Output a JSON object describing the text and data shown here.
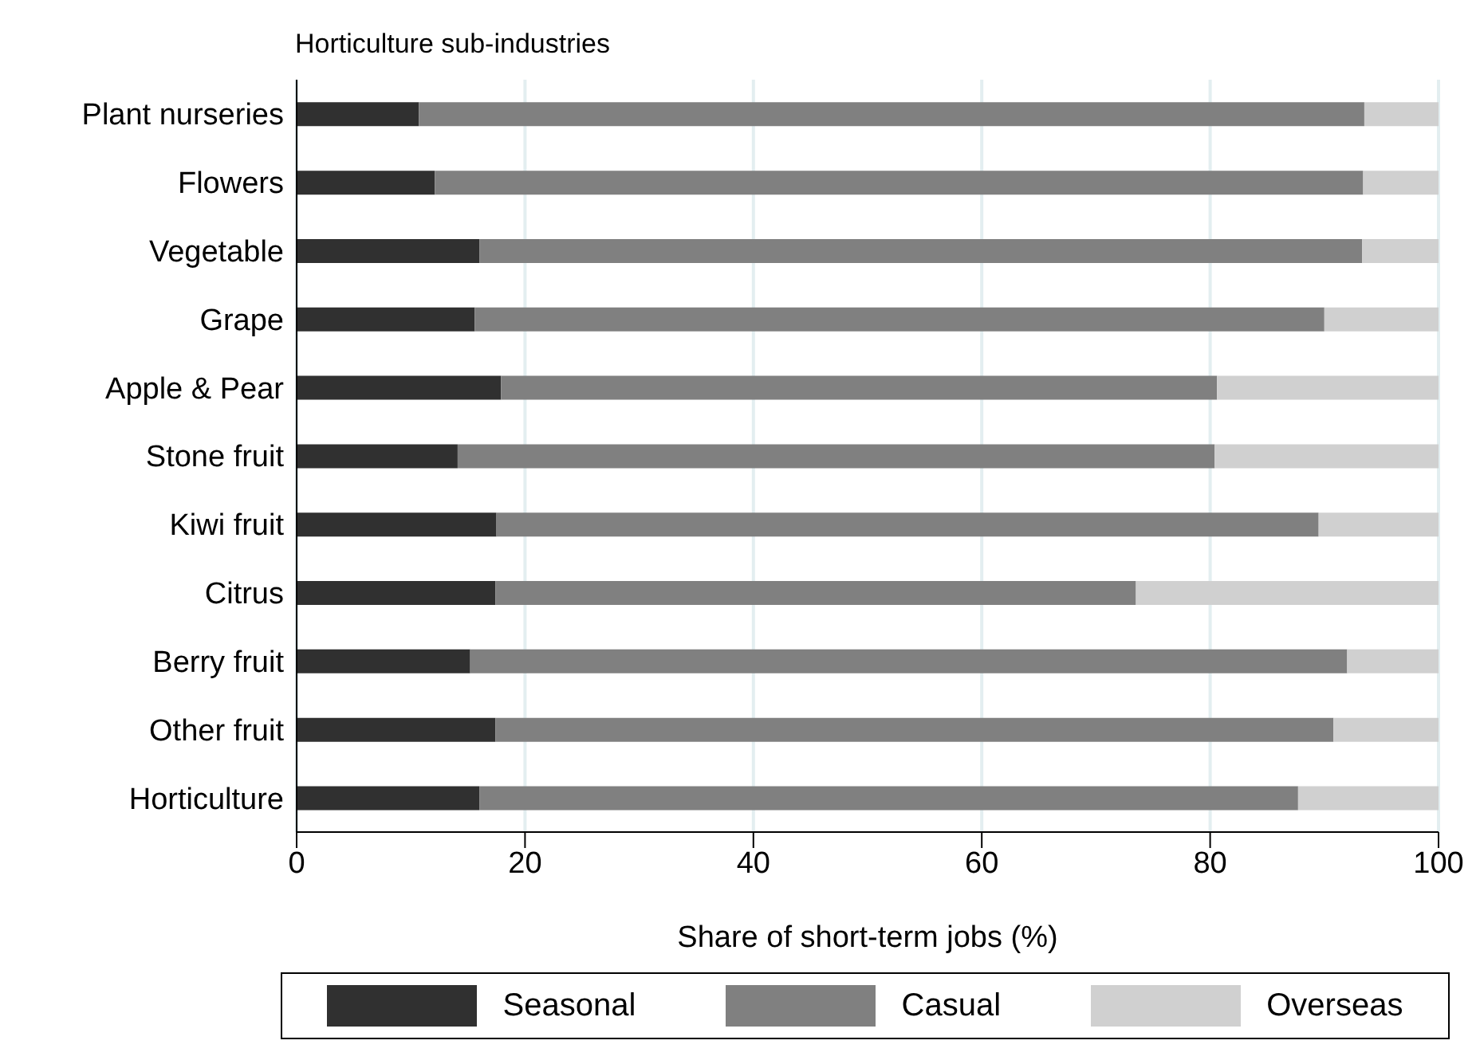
{
  "chart_data": {
    "type": "bar",
    "orientation": "horizontal",
    "stacked": true,
    "title": "Horticulture sub-industries",
    "xlabel": "Share of short-term jobs (%)",
    "categories": [
      "Plant nurseries",
      "Flowers",
      "Vegetable",
      "Grape",
      "Apple & Pear",
      "Stone fruit",
      "Kiwi fruit",
      "Citrus",
      "Berry fruit",
      "Other fruit",
      "Horticulture"
    ],
    "series": [
      {
        "name": "Seasonal",
        "color": "#303030",
        "values": [
          10.7,
          12.1,
          16.0,
          15.6,
          17.9,
          14.1,
          17.5,
          17.4,
          15.2,
          17.4,
          16.0
        ]
      },
      {
        "name": "Casual",
        "color": "#808080",
        "values": [
          82.8,
          81.3,
          77.3,
          74.4,
          62.7,
          66.3,
          72.0,
          56.1,
          76.8,
          73.4,
          71.7
        ]
      },
      {
        "name": "Overseas",
        "color": "#d0d0d0",
        "values": [
          6.5,
          6.6,
          6.7,
          10.0,
          19.4,
          19.6,
          10.5,
          26.5,
          8.0,
          9.2,
          12.3
        ]
      }
    ],
    "xlim": [
      0,
      100
    ],
    "xticks": [
      0,
      20,
      40,
      60,
      80,
      100
    ],
    "grid": "x",
    "legend": "bottom"
  }
}
